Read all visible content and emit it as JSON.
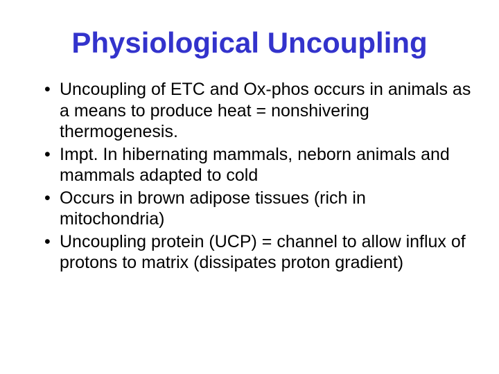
{
  "slide": {
    "title": "Physiological Uncoupling",
    "title_color": "#3333cc",
    "title_fontsize": 42,
    "body_color": "#000000",
    "body_fontsize": 25,
    "line_height": 1.22,
    "background_color": "#ffffff",
    "font_family": "Comic Sans MS",
    "bullets": [
      "Uncoupling of ETC and Ox-phos occurs in animals as a means to produce heat = nonshivering thermogenesis.",
      "Impt. In hibernating mammals, neborn animals and mammals adapted to cold",
      "Occurs in brown adipose tissues (rich in mitochondria)",
      "Uncoupling protein (UCP) = channel to allow influx of protons to matrix (dissipates proton gradient)"
    ]
  }
}
